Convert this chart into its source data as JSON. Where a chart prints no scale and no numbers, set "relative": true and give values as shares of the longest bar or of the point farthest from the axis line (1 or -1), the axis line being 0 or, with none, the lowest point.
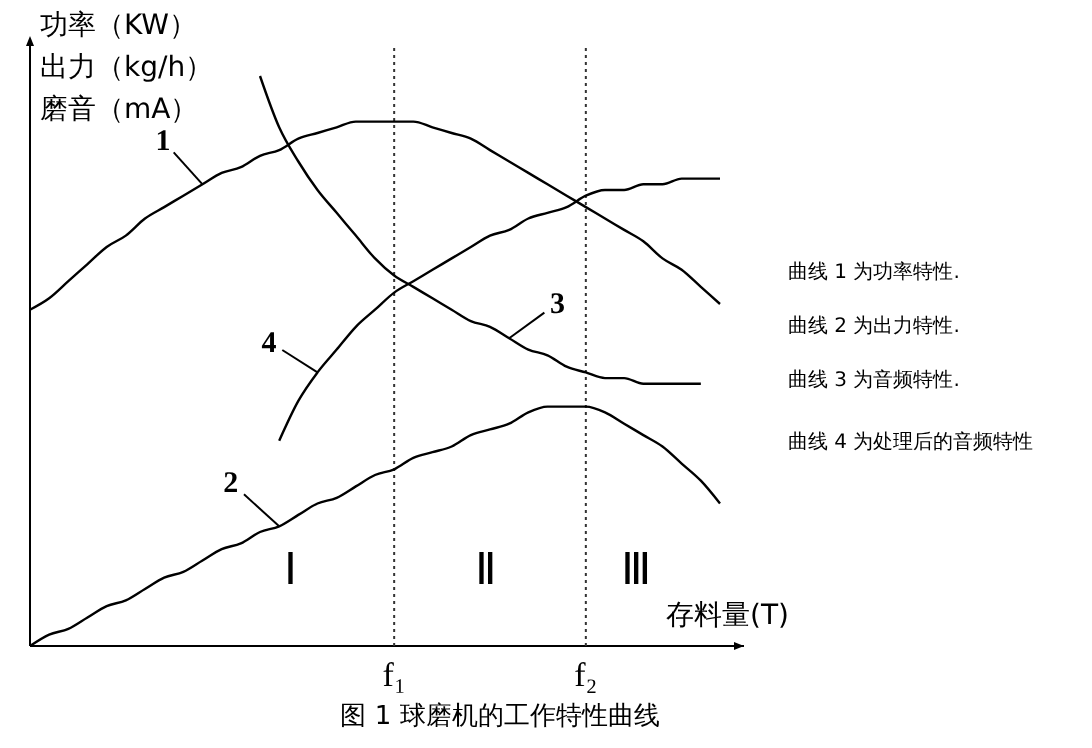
{
  "chart_data": {
    "type": "line",
    "relative": true,
    "title": "图 1 球磨机的工作特性曲线",
    "xlabel": "存料量(T)",
    "ylabel": "功率（KW）出力（kg/h）磨音（mA）",
    "categories": [
      null,
      null,
      null,
      null,
      null,
      null,
      null,
      null,
      null,
      null,
      null,
      null,
      null,
      null,
      null,
      null,
      null,
      null,
      null,
      "f₁",
      null,
      null,
      null,
      null,
      null,
      null,
      null,
      null,
      null,
      "f₂",
      null,
      null,
      null,
      null,
      null,
      null,
      null
    ],
    "series": [
      {
        "name": "1",
        "color": "#000000",
        "values": [
          0.59,
          0.61,
          0.64,
          0.67,
          0.7,
          0.72,
          0.75,
          0.77,
          0.79,
          0.81,
          0.83,
          0.84,
          0.86,
          0.87,
          0.89,
          0.9,
          0.91,
          0.92,
          0.92,
          0.92,
          0.92,
          0.91,
          0.9,
          0.89,
          0.87,
          0.85,
          0.83,
          0.81,
          0.79,
          0.77,
          0.75,
          0.73,
          0.71,
          0.68,
          0.66,
          0.63,
          0.6
        ]
      },
      {
        "name": "2",
        "color": "#000000",
        "values": [
          0,
          0.02,
          0.03,
          0.05,
          0.07,
          0.08,
          0.1,
          0.12,
          0.13,
          0.15,
          0.17,
          0.18,
          0.2,
          0.21,
          0.23,
          0.25,
          0.26,
          0.28,
          0.3,
          0.31,
          0.33,
          0.34,
          0.35,
          0.37,
          0.38,
          0.39,
          0.41,
          0.42,
          0.42,
          0.42,
          0.41,
          0.39,
          0.37,
          0.35,
          0.32,
          0.29,
          0.25
        ]
      },
      {
        "name": "3",
        "color": "#000000",
        "values": [
          null,
          null,
          null,
          null,
          null,
          null,
          null,
          null,
          null,
          null,
          null,
          null,
          1,
          0.91,
          0.85,
          0.8,
          0.76,
          0.72,
          0.68,
          0.65,
          0.63,
          0.61,
          0.59,
          0.57,
          0.56,
          0.54,
          0.52,
          0.51,
          0.49,
          0.48,
          0.47,
          0.47,
          0.46,
          0.46,
          0.46,
          0.46,
          null
        ]
      },
      {
        "name": "4",
        "color": "#000000",
        "values": [
          null,
          null,
          null,
          null,
          null,
          null,
          null,
          null,
          null,
          null,
          null,
          null,
          null,
          0.36,
          0.43,
          0.48,
          0.52,
          0.56,
          0.59,
          0.62,
          0.64,
          0.66,
          0.68,
          0.7,
          0.72,
          0.73,
          0.75,
          0.76,
          0.77,
          0.79,
          0.8,
          0.8,
          0.81,
          0.81,
          0.82,
          0.82,
          0.82
        ]
      }
    ],
    "ref_lines": [
      {
        "axis": "x",
        "value": "f₁",
        "line_style": "dotted"
      },
      {
        "axis": "x",
        "value": "f₂",
        "line_style": "dotted"
      }
    ],
    "annotations": [
      "Ⅰ",
      "Ⅱ",
      "Ⅲ",
      "曲线 1 为功率特性.",
      "曲线 2 为出力特性.",
      "曲线 3 为音频特性.",
      "曲线 4 为处理后的音频特性"
    ],
    "marker": "none",
    "line_style": "solid"
  }
}
